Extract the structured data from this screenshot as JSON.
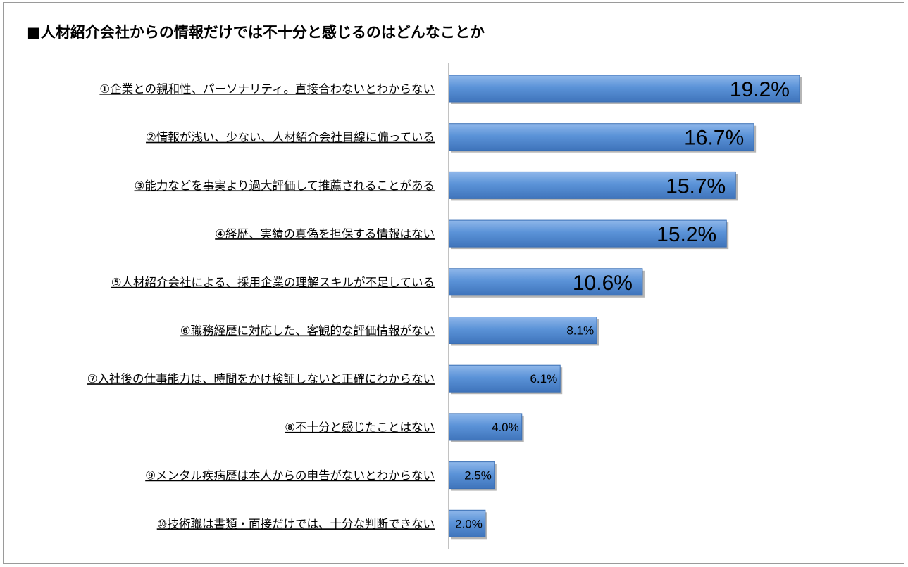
{
  "chart_data": {
    "type": "bar",
    "orientation": "horizontal",
    "title": "■人材紹介会社からの情報だけでは不十分と感じるのはどんなことか",
    "categories": [
      "①企業との親和性、パーソナリティ。直接合わないとわからない",
      "②情報が浅い、少ない、人材紹介会社目線に偏っている",
      "③能力などを事実より過大評価して推薦されることがある",
      "④経歴、実績の真偽を担保する情報はない",
      "⑤人材紹介会社による、採用企業の理解スキルが不足している",
      "⑥職務経歴に対応した、客観的な評価情報がない",
      "⑦入社後の仕事能力は、時間をかけ検証しないと正確にわからない",
      "⑧不十分と感じたことはない",
      "⑨メンタル疾病歴は本人からの申告がないとわからない",
      "⑩技術職は書類・面接だけでは、十分な判断できない"
    ],
    "values": [
      19.2,
      16.7,
      15.7,
      15.2,
      10.6,
      8.1,
      6.1,
      4.0,
      2.5,
      2.0
    ],
    "value_labels": [
      "19.2%",
      "16.7%",
      "15.7%",
      "15.2%",
      "10.6%",
      "8.1%",
      "6.1%",
      "4.0%",
      "2.5%",
      "2.0%"
    ],
    "xlim": [
      0,
      24
    ],
    "bar_color": "#5b93d8",
    "grid": false,
    "legend": "none"
  }
}
